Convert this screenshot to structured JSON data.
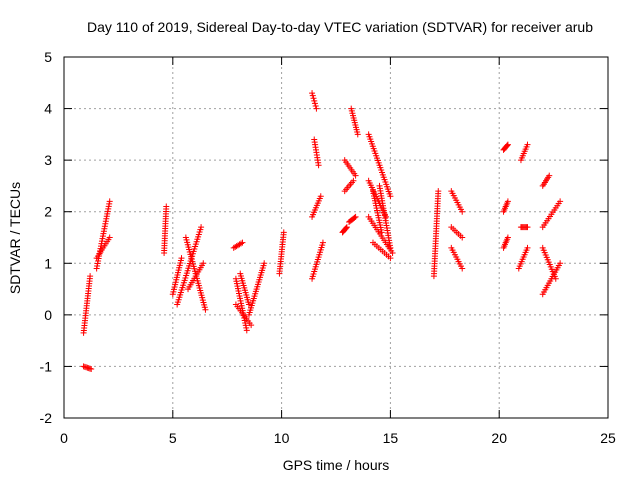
{
  "chart_data": {
    "type": "scatter",
    "title": "Day 110 of 2019, Sidereal Day-to-day VTEC variation (SDTVAR) for receiver arub",
    "xlabel": "GPS time / hours",
    "ylabel": "SDTVAR / TECUs",
    "xlim": [
      0,
      25
    ],
    "ylim": [
      -2,
      5
    ],
    "xticks": [
      "0",
      "5",
      "10",
      "15",
      "20",
      "25"
    ],
    "yticks": [
      "-2",
      "-1",
      "0",
      "1",
      "2",
      "3",
      "4",
      "5"
    ],
    "grid": true,
    "marker": "plus",
    "color": "#ff0000",
    "segments": [
      {
        "x": [
          0.9,
          1.2
        ],
        "y": [
          -0.35,
          0.75
        ]
      },
      {
        "x": [
          0.9,
          1.25
        ],
        "y": [
          -1.0,
          -1.05
        ]
      },
      {
        "x": [
          1.5,
          2.1
        ],
        "y": [
          0.9,
          2.2
        ]
      },
      {
        "x": [
          1.5,
          2.1
        ],
        "y": [
          1.1,
          1.5
        ]
      },
      {
        "x": [
          4.6,
          4.7
        ],
        "y": [
          1.2,
          2.1
        ]
      },
      {
        "x": [
          5.0,
          5.4
        ],
        "y": [
          0.4,
          1.1
        ]
      },
      {
        "x": [
          5.2,
          6.3
        ],
        "y": [
          0.2,
          1.7
        ]
      },
      {
        "x": [
          5.6,
          6.5
        ],
        "y": [
          1.5,
          0.1
        ]
      },
      {
        "x": [
          5.7,
          6.4
        ],
        "y": [
          0.5,
          1.0
        ]
      },
      {
        "x": [
          7.8,
          8.2
        ],
        "y": [
          1.3,
          1.4
        ]
      },
      {
        "x": [
          7.9,
          8.4
        ],
        "y": [
          0.7,
          -0.3
        ]
      },
      {
        "x": [
          7.9,
          8.6
        ],
        "y": [
          0.2,
          -0.2
        ]
      },
      {
        "x": [
          8.1,
          8.5
        ],
        "y": [
          0.8,
          0.2
        ]
      },
      {
        "x": [
          8.5,
          9.2
        ],
        "y": [
          0.0,
          1.0
        ]
      },
      {
        "x": [
          9.9,
          10.1
        ],
        "y": [
          0.8,
          1.6
        ]
      },
      {
        "x": [
          11.4,
          11.6
        ],
        "y": [
          4.3,
          4.0
        ]
      },
      {
        "x": [
          11.4,
          11.8
        ],
        "y": [
          1.9,
          2.3
        ]
      },
      {
        "x": [
          11.5,
          11.7
        ],
        "y": [
          3.4,
          2.9
        ]
      },
      {
        "x": [
          11.4,
          11.9
        ],
        "y": [
          0.7,
          1.4
        ]
      },
      {
        "x": [
          12.8,
          13.0
        ],
        "y": [
          1.6,
          1.7
        ]
      },
      {
        "x": [
          12.9,
          13.3
        ],
        "y": [
          2.4,
          2.6
        ]
      },
      {
        "x": [
          12.9,
          13.4
        ],
        "y": [
          3.0,
          2.7
        ]
      },
      {
        "x": [
          13.1,
          13.4
        ],
        "y": [
          1.8,
          1.9
        ]
      },
      {
        "x": [
          13.2,
          13.5
        ],
        "y": [
          4.0,
          3.5
        ]
      },
      {
        "x": [
          14.0,
          15.0
        ],
        "y": [
          3.5,
          2.3
        ]
      },
      {
        "x": [
          14.0,
          14.8
        ],
        "y": [
          2.6,
          1.9
        ]
      },
      {
        "x": [
          14.0,
          15.1
        ],
        "y": [
          1.9,
          1.2
        ]
      },
      {
        "x": [
          14.2,
          15.0
        ],
        "y": [
          1.4,
          1.1
        ]
      },
      {
        "x": [
          14.2,
          14.6
        ],
        "y": [
          2.4,
          1.6
        ]
      },
      {
        "x": [
          14.5,
          15.0
        ],
        "y": [
          2.5,
          1.3
        ]
      },
      {
        "x": [
          17.0,
          17.2
        ],
        "y": [
          0.75,
          2.4
        ]
      },
      {
        "x": [
          17.8,
          18.3
        ],
        "y": [
          2.4,
          2.0
        ]
      },
      {
        "x": [
          17.8,
          18.3
        ],
        "y": [
          1.7,
          1.5
        ]
      },
      {
        "x": [
          17.8,
          18.3
        ],
        "y": [
          1.3,
          0.9
        ]
      },
      {
        "x": [
          20.2,
          20.4
        ],
        "y": [
          3.2,
          3.3
        ]
      },
      {
        "x": [
          20.2,
          20.4
        ],
        "y": [
          2.0,
          2.2
        ]
      },
      {
        "x": [
          20.2,
          20.4
        ],
        "y": [
          1.3,
          1.5
        ]
      },
      {
        "x": [
          21.0,
          21.3
        ],
        "y": [
          3.0,
          3.3
        ]
      },
      {
        "x": [
          21.0,
          21.3
        ],
        "y": [
          1.7,
          1.7
        ]
      },
      {
        "x": [
          20.9,
          21.3
        ],
        "y": [
          0.9,
          1.3
        ]
      },
      {
        "x": [
          22.0,
          22.3
        ],
        "y": [
          2.5,
          2.7
        ]
      },
      {
        "x": [
          22.0,
          22.8
        ],
        "y": [
          1.7,
          2.2
        ]
      },
      {
        "x": [
          22.0,
          22.8
        ],
        "y": [
          0.4,
          1.0
        ]
      },
      {
        "x": [
          22.0,
          22.6
        ],
        "y": [
          1.3,
          0.7
        ]
      }
    ]
  }
}
